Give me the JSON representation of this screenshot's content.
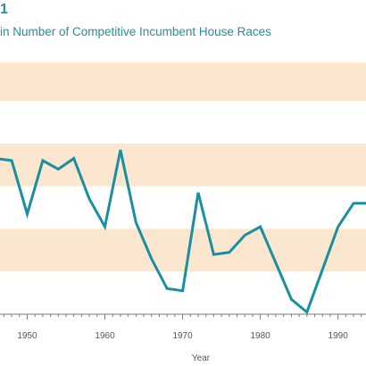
{
  "figure": {
    "number": "1",
    "title": "in Number of Competitive Incumbent House Races"
  },
  "colors": {
    "band": "#fbe6cf",
    "line": "#1a8fa0",
    "axis": "#7a7a7a",
    "title": "#2a8c9c"
  },
  "chart_data": {
    "type": "line",
    "title": "in Number of Competitive Incumbent House Races",
    "xlabel": "Year",
    "ylabel": "",
    "x_ticks": [
      1950,
      1960,
      1970,
      1980,
      1990
    ],
    "xlim": [
      1946.5,
      1993.6
    ],
    "ylim": [
      0,
      5.9
    ],
    "grid": "alternating horizontal bands",
    "series": [
      {
        "x": [
          1946,
          1948,
          1950,
          1952,
          1954,
          1956,
          1958,
          1960,
          1962,
          1964,
          1966,
          1968,
          1970,
          1972,
          1974,
          1976,
          1978,
          1980,
          1982,
          1984,
          1986,
          1988,
          1990,
          1992,
          1994
        ],
        "y": [
          3.65,
          3.6,
          2.35,
          3.6,
          3.4,
          3.65,
          2.7,
          2.05,
          3.85,
          2.15,
          1.3,
          0.6,
          0.55,
          2.85,
          1.4,
          1.45,
          1.85,
          2.05,
          1.2,
          0.35,
          0.05,
          1.05,
          2.05,
          2.6,
          2.6
        ]
      }
    ]
  }
}
